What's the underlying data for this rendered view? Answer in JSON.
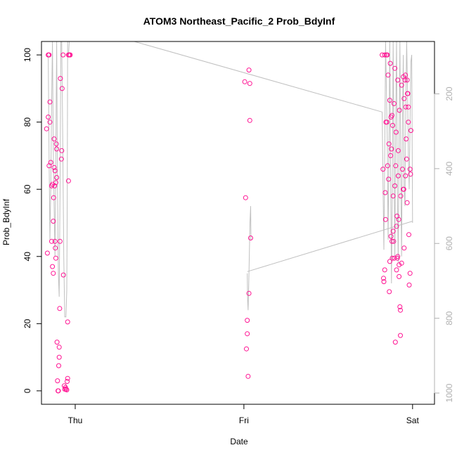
{
  "chart_data": {
    "type": "scatter",
    "title": "ATOM3 Northeast_Pacific_2 Prob_BdyInf",
    "xlabel": "Date",
    "ylabel": "Prob_BdyInf",
    "x_ticks": [
      "Thu",
      "Fri",
      "Sat"
    ],
    "y_ticks": [
      "0",
      "20",
      "40",
      "60",
      "80",
      "100"
    ],
    "y2_ticks": [
      "200",
      "400",
      "600",
      "800",
      "1000"
    ],
    "xlim": [
      -0.2,
      2.13
    ],
    "ylim": [
      -4,
      104
    ],
    "y2lim": [
      1030,
      60
    ],
    "y2_reversed": true,
    "point_color": "#ff1493",
    "line_color": "#c0c0c0",
    "points": [
      {
        "x": -0.17,
        "y": 78
      },
      {
        "x": -0.165,
        "y": 41
      },
      {
        "x": -0.16,
        "y": 100
      },
      {
        "x": -0.16,
        "y": 81.5
      },
      {
        "x": -0.155,
        "y": 100
      },
      {
        "x": -0.155,
        "y": 67
      },
      {
        "x": -0.15,
        "y": 80
      },
      {
        "x": -0.15,
        "y": 86
      },
      {
        "x": -0.145,
        "y": 68
      },
      {
        "x": -0.14,
        "y": 61
      },
      {
        "x": -0.14,
        "y": 44.5
      },
      {
        "x": -0.135,
        "y": 61.5
      },
      {
        "x": -0.135,
        "y": 37
      },
      {
        "x": -0.13,
        "y": 35
      },
      {
        "x": -0.13,
        "y": 50.5
      },
      {
        "x": -0.128,
        "y": 57.5
      },
      {
        "x": -0.125,
        "y": 75
      },
      {
        "x": -0.125,
        "y": 66.5
      },
      {
        "x": -0.122,
        "y": 61
      },
      {
        "x": -0.12,
        "y": 44.5
      },
      {
        "x": -0.12,
        "y": 65.5
      },
      {
        "x": -0.118,
        "y": 42.5
      },
      {
        "x": -0.115,
        "y": 62
      },
      {
        "x": -0.115,
        "y": 39.5
      },
      {
        "x": -0.112,
        "y": 73.5
      },
      {
        "x": -0.11,
        "y": 63.5
      },
      {
        "x": -0.11,
        "y": 72
      },
      {
        "x": -0.108,
        "y": 14.5
      },
      {
        "x": -0.105,
        "y": 3
      },
      {
        "x": -0.102,
        "y": 0
      },
      {
        "x": -0.1,
        "y": 0
      },
      {
        "x": -0.098,
        "y": 7.5
      },
      {
        "x": -0.095,
        "y": 13
      },
      {
        "x": -0.095,
        "y": 10
      },
      {
        "x": -0.092,
        "y": 24.5
      },
      {
        "x": -0.09,
        "y": 44.5
      },
      {
        "x": -0.088,
        "y": 93
      },
      {
        "x": -0.082,
        "y": 69
      },
      {
        "x": -0.08,
        "y": 71.5
      },
      {
        "x": -0.078,
        "y": 90
      },
      {
        "x": -0.072,
        "y": 100
      },
      {
        "x": -0.07,
        "y": 34.5
      },
      {
        "x": -0.065,
        "y": 1.5
      },
      {
        "x": -0.062,
        "y": 0.5
      },
      {
        "x": -0.058,
        "y": 1
      },
      {
        "x": -0.055,
        "y": 0.5
      },
      {
        "x": -0.05,
        "y": 0.3
      },
      {
        "x": -0.048,
        "y": 2.8
      },
      {
        "x": -0.045,
        "y": 3.7
      },
      {
        "x": -0.045,
        "y": 20.5
      },
      {
        "x": -0.04,
        "y": 62.5
      },
      {
        "x": -0.04,
        "y": 100
      },
      {
        "x": -0.035,
        "y": 100
      },
      {
        "x": -0.03,
        "y": 100
      },
      {
        "x": 1.005,
        "y": 92
      },
      {
        "x": 1.01,
        "y": 57.5
      },
      {
        "x": 1.015,
        "y": 12.5
      },
      {
        "x": 1.02,
        "y": 21
      },
      {
        "x": 1.02,
        "y": 17
      },
      {
        "x": 1.025,
        "y": 4.3
      },
      {
        "x": 1.03,
        "y": 95.5
      },
      {
        "x": 1.035,
        "y": 91.5
      },
      {
        "x": 1.035,
        "y": 80.5
      },
      {
        "x": 1.04,
        "y": 45.5
      },
      {
        "x": 1.03,
        "y": 29
      },
      {
        "x": 1.82,
        "y": 100
      },
      {
        "x": 1.825,
        "y": 66
      },
      {
        "x": 1.828,
        "y": 33.5
      },
      {
        "x": 1.83,
        "y": 32.5
      },
      {
        "x": 1.835,
        "y": 100
      },
      {
        "x": 1.835,
        "y": 36
      },
      {
        "x": 1.838,
        "y": 59
      },
      {
        "x": 1.84,
        "y": 51
      },
      {
        "x": 1.842,
        "y": 80
      },
      {
        "x": 1.845,
        "y": 100
      },
      {
        "x": 1.848,
        "y": 80
      },
      {
        "x": 1.85,
        "y": 100
      },
      {
        "x": 1.852,
        "y": 67
      },
      {
        "x": 1.855,
        "y": 94
      },
      {
        "x": 1.858,
        "y": 63
      },
      {
        "x": 1.86,
        "y": 73.5
      },
      {
        "x": 1.862,
        "y": 29.5
      },
      {
        "x": 1.865,
        "y": 38.5
      },
      {
        "x": 1.865,
        "y": 86.5
      },
      {
        "x": 1.868,
        "y": 97.5
      },
      {
        "x": 1.87,
        "y": 70
      },
      {
        "x": 1.872,
        "y": 81.5
      },
      {
        "x": 1.872,
        "y": 46
      },
      {
        "x": 1.875,
        "y": 72
      },
      {
        "x": 1.878,
        "y": 44.5
      },
      {
        "x": 1.878,
        "y": 82
      },
      {
        "x": 1.88,
        "y": 39.5
      },
      {
        "x": 1.882,
        "y": 79
      },
      {
        "x": 1.885,
        "y": 47.5
      },
      {
        "x": 1.885,
        "y": 58
      },
      {
        "x": 1.888,
        "y": 44.5
      },
      {
        "x": 1.89,
        "y": 85.5
      },
      {
        "x": 1.892,
        "y": 39.5
      },
      {
        "x": 1.895,
        "y": 96
      },
      {
        "x": 1.895,
        "y": 61
      },
      {
        "x": 1.898,
        "y": 14.5
      },
      {
        "x": 1.9,
        "y": 67
      },
      {
        "x": 1.902,
        "y": 77
      },
      {
        "x": 1.905,
        "y": 49
      },
      {
        "x": 1.905,
        "y": 36
      },
      {
        "x": 1.908,
        "y": 52
      },
      {
        "x": 1.91,
        "y": 39.5
      },
      {
        "x": 1.912,
        "y": 92.5
      },
      {
        "x": 1.912,
        "y": 40
      },
      {
        "x": 1.915,
        "y": 71.5
      },
      {
        "x": 1.915,
        "y": 64
      },
      {
        "x": 1.918,
        "y": 51
      },
      {
        "x": 1.92,
        "y": 34
      },
      {
        "x": 1.92,
        "y": 37.5
      },
      {
        "x": 1.922,
        "y": 83.5
      },
      {
        "x": 1.925,
        "y": 25
      },
      {
        "x": 1.928,
        "y": 24
      },
      {
        "x": 1.928,
        "y": 16.5
      },
      {
        "x": 1.93,
        "y": 58
      },
      {
        "x": 1.935,
        "y": 91
      },
      {
        "x": 1.935,
        "y": 38
      },
      {
        "x": 1.94,
        "y": 66
      },
      {
        "x": 1.945,
        "y": 60
      },
      {
        "x": 1.945,
        "y": 93.5
      },
      {
        "x": 1.948,
        "y": 60
      },
      {
        "x": 1.95,
        "y": 87
      },
      {
        "x": 1.95,
        "y": 42.5
      },
      {
        "x": 1.955,
        "y": 92.5
      },
      {
        "x": 1.958,
        "y": 94
      },
      {
        "x": 1.958,
        "y": 64
      },
      {
        "x": 1.96,
        "y": 84.5
      },
      {
        "x": 1.962,
        "y": 75
      },
      {
        "x": 1.965,
        "y": 69
      },
      {
        "x": 1.968,
        "y": 56
      },
      {
        "x": 1.968,
        "y": 92.5
      },
      {
        "x": 1.97,
        "y": 88.5
      },
      {
        "x": 1.972,
        "y": 88.5
      },
      {
        "x": 1.975,
        "y": 84.5
      },
      {
        "x": 1.975,
        "y": 80
      },
      {
        "x": 1.978,
        "y": 46.5
      },
      {
        "x": 1.98,
        "y": 31.5
      },
      {
        "x": 1.985,
        "y": 35
      },
      {
        "x": 1.985,
        "y": 66
      },
      {
        "x": 1.988,
        "y": 64.5
      },
      {
        "x": 1.99,
        "y": 77.5
      }
    ]
  }
}
